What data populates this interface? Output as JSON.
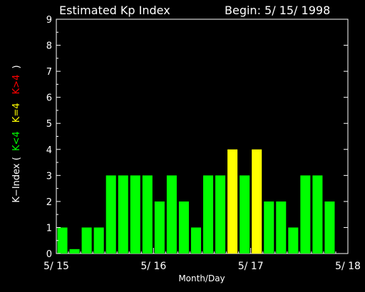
{
  "chart_data": {
    "type": "bar",
    "title": "Estimated Kp Index",
    "begin_label": "Begin: 5/ 15/ 1998",
    "xlabel": "Month/Day",
    "ylabel": {
      "prefix": "K−Index (",
      "low": "K<4",
      "mid": "K=4",
      "high": "K>4",
      "suffix": ")"
    },
    "ylim": [
      0,
      9
    ],
    "yticks": [
      "0",
      "1",
      "2",
      "3",
      "4",
      "5",
      "6",
      "7",
      "8",
      "9"
    ],
    "xticks": [
      "5/ 15",
      "5/ 16",
      "5/ 17",
      "5/ 18"
    ],
    "bars_per_day": 8,
    "values": [
      1,
      0.17,
      1,
      1,
      3,
      3,
      3,
      3,
      2,
      3,
      2,
      1,
      3,
      3,
      4,
      3,
      4,
      2,
      2,
      1,
      3,
      3,
      2
    ],
    "colors": {
      "low": "#00ff00",
      "mid": "#ffff00",
      "high": "#ff0000",
      "axis": "#ffffff",
      "background": "#000000"
    }
  }
}
